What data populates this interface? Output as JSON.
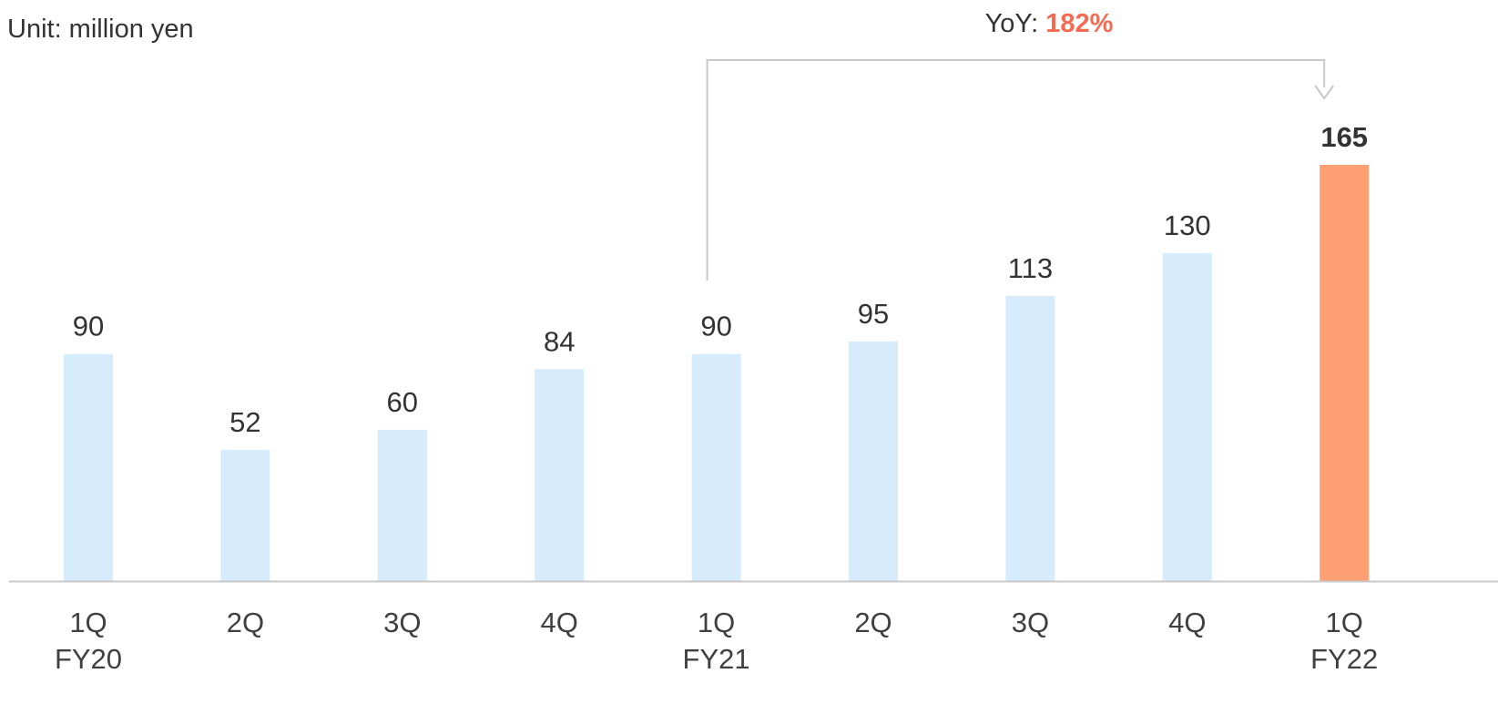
{
  "unit_label": "Unit: million yen",
  "annotation": {
    "prefix": "YoY: ",
    "value": "182%",
    "value_color": "#f26b52"
  },
  "colors": {
    "bar": "#d6ebfb",
    "highlight_bar": "#ffa074",
    "axis": "#c8c8c8",
    "bracket": "#c8c8c8"
  },
  "chart_data": {
    "type": "bar",
    "categories": [
      "1Q",
      "2Q",
      "3Q",
      "4Q",
      "1Q",
      "2Q",
      "3Q",
      "4Q",
      "1Q"
    ],
    "fiscal_year_labels": [
      "FY20",
      "",
      "",
      "",
      "FY21",
      "",
      "",
      "",
      "FY22"
    ],
    "values": [
      90,
      52,
      60,
      84,
      90,
      95,
      113,
      130,
      165
    ],
    "highlight_index": 8,
    "yoy_from_index": 4,
    "yoy_to_index": 8,
    "unit": "million yen",
    "ylim": [
      0,
      165
    ],
    "grid": false,
    "legend": "none"
  }
}
